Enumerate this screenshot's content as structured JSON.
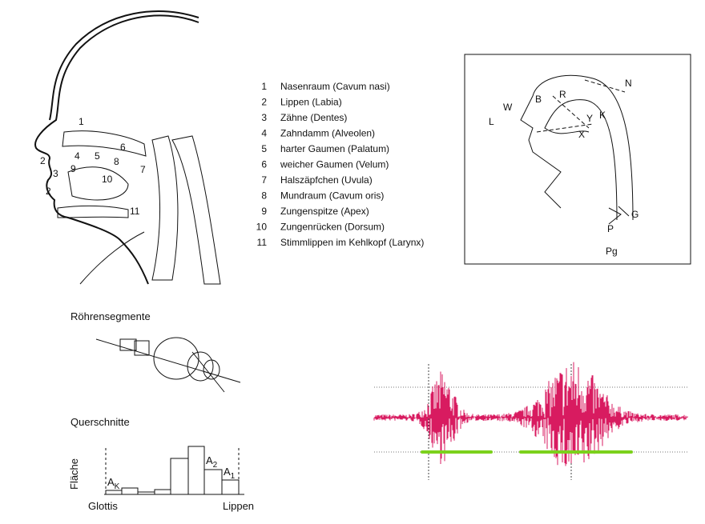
{
  "head_labels": [
    "1",
    "2",
    "3",
    "4",
    "5",
    "6",
    "7",
    "8",
    "9",
    "10",
    "11",
    "2"
  ],
  "legend": [
    {
      "num": "1",
      "label": "Nasenraum  (Cavum nasi)"
    },
    {
      "num": "2",
      "label": "Lippen  (Labia)"
    },
    {
      "num": "3",
      "label": "Zähne  (Dentes)"
    },
    {
      "num": "4",
      "label": "Zahndamm  (Alveolen)"
    },
    {
      "num": "5",
      "label": "harter Gaumen  (Palatum)"
    },
    {
      "num": "6",
      "label": "weicher Gaumen  (Velum)"
    },
    {
      "num": "7",
      "label": "Halszäpfchen  (Uvula)"
    },
    {
      "num": "8",
      "label": "Mundraum  (Cavum oris)"
    },
    {
      "num": "9",
      "label": "Zungenspitze  (Apex)"
    },
    {
      "num": "10",
      "label": "Zungenrücken  (Dorsum)"
    },
    {
      "num": "11",
      "label": "Stimmlippen im Kehlkopf  (Larynx)"
    }
  ],
  "model_letters": [
    "W",
    "L",
    "B",
    "R",
    "N",
    "Y",
    "K",
    "X",
    "G",
    "P",
    "Pg"
  ],
  "tube": {
    "title": "Röhrensegmente"
  },
  "cross": {
    "title": "Querschnitte",
    "y_label": "Fläche",
    "left": "Glottis",
    "right": "Lippen",
    "areas": [
      {
        "base": "A",
        "sub": "K"
      },
      {
        "base": "A",
        "sub": "2"
      },
      {
        "base": "A",
        "sub": "1"
      }
    ]
  }
}
